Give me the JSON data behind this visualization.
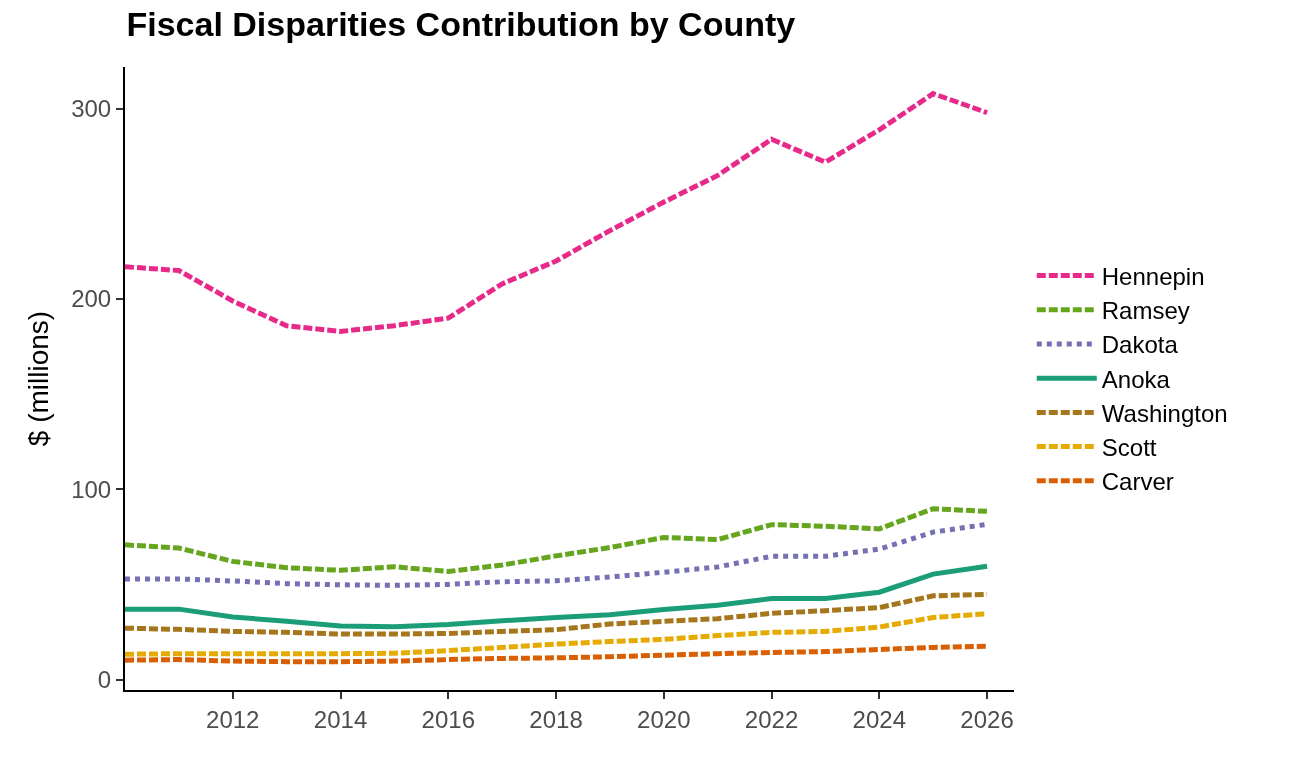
{
  "chart_data": {
    "type": "line",
    "title": "Fiscal Disparities Contribution by County",
    "ylabel": "$ (millions)",
    "x": [
      2010,
      2011,
      2012,
      2013,
      2014,
      2015,
      2016,
      2017,
      2018,
      2019,
      2020,
      2021,
      2022,
      2023,
      2024,
      2025,
      2026
    ],
    "series": [
      {
        "name": "Hennepin",
        "color": "#e7298a",
        "line_style": "dashed",
        "values": [
          217,
          215,
          199,
          186,
          183,
          186,
          190,
          208,
          220,
          236,
          251,
          265,
          284,
          272,
          289,
          308,
          298
        ]
      },
      {
        "name": "Ramsey",
        "color": "#66a61e",
        "line_style": "dashed",
        "values": [
          70.8,
          69.1,
          62.1,
          58.8,
          57.4,
          59.3,
          56.8,
          60.2,
          65,
          69.4,
          74.7,
          73.6,
          81.4,
          80.6,
          79.2,
          89.8,
          88.4
        ]
      },
      {
        "name": "Dakota",
        "color": "#7570b3",
        "line_style": "dotted",
        "values": [
          52.9,
          52.9,
          51.8,
          50.4,
          49.8,
          49.5,
          50,
          51.4,
          51.9,
          53.9,
          56.4,
          59.2,
          64.8,
          64.8,
          68.6,
          77.5,
          81.6
        ]
      },
      {
        "name": "Anoka",
        "color": "#1b9e77",
        "line_style": "solid",
        "values": [
          37,
          37,
          32.9,
          30.6,
          28.1,
          27.8,
          28.9,
          30.9,
          32.6,
          34,
          36.8,
          39,
          42.6,
          42.6,
          45.9,
          55.4,
          59.6
        ]
      },
      {
        "name": "Washington",
        "color": "#a6761d",
        "line_style": "dashed",
        "values": [
          27,
          26.4,
          25.3,
          24.8,
          23.9,
          23.9,
          24.2,
          25.3,
          26.2,
          29.2,
          30.6,
          32,
          34.8,
          36.2,
          37.8,
          44,
          44.8
        ]
      },
      {
        "name": "Scott",
        "color": "#e6ab02",
        "line_style": "dashed",
        "values": [
          13.3,
          13.6,
          13.6,
          13.6,
          13.6,
          13.8,
          15.2,
          16.9,
          18.6,
          20,
          21.1,
          23.1,
          24.8,
          25.3,
          27.6,
          32.6,
          34.6
        ]
      },
      {
        "name": "Carver",
        "color": "#d95f02",
        "line_style": "dashed",
        "values": [
          10.2,
          10.5,
          9.7,
          9.4,
          9.4,
          9.7,
          10.5,
          11.1,
          11.4,
          12,
          12.8,
          13.6,
          14.2,
          14.7,
          15.8,
          16.9,
          17.5
        ]
      }
    ],
    "xlim": [
      2010,
      2026.5
    ],
    "xticks": [
      2012,
      2014,
      2016,
      2018,
      2020,
      2022,
      2024,
      2026
    ],
    "ylim": [
      -5.5,
      322
    ],
    "yticks": [
      0,
      100,
      200,
      300
    ],
    "grid": false,
    "legend": "right",
    "marker": "none"
  }
}
